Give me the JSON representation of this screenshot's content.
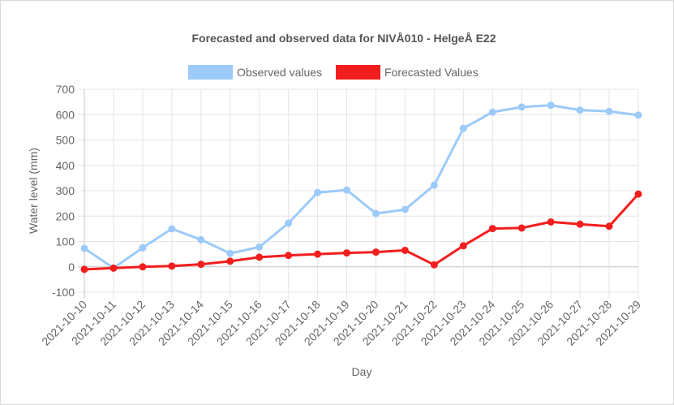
{
  "chart_data": {
    "type": "line",
    "title": "Forecasted and observed data for NIVÅ010 - HelgeÅ E22",
    "xlabel": "Day",
    "ylabel": "Water level (mm)",
    "ylim": [
      -100,
      700
    ],
    "yticks": [
      -100,
      0,
      100,
      200,
      300,
      400,
      500,
      600,
      700
    ],
    "grid": true,
    "legend_position": "top",
    "categories": [
      "2021-10-10",
      "2021-10-11",
      "2021-10-12",
      "2021-10-13",
      "2021-10-14",
      "2021-10-15",
      "2021-10-16",
      "2021-10-17",
      "2021-10-18",
      "2021-10-19",
      "2021-10-20",
      "2021-10-21",
      "2021-10-22",
      "2021-10-23",
      "2021-10-24",
      "2021-10-25",
      "2021-10-26",
      "2021-10-27",
      "2021-10-28",
      "2021-10-29"
    ],
    "series": [
      {
        "name": "Observed values",
        "color": "#9ccafa",
        "values": [
          73,
          -5,
          75,
          150,
          107,
          53,
          78,
          172,
          293,
          303,
          210,
          226,
          322,
          546,
          610,
          630,
          637,
          618,
          613,
          598
        ]
      },
      {
        "name": "Forecasted Values",
        "color": "#f21e1e",
        "values": [
          -10,
          -5,
          0,
          3,
          10,
          22,
          38,
          45,
          50,
          55,
          58,
          65,
          8,
          83,
          151,
          153,
          177,
          168,
          160,
          287
        ]
      }
    ]
  }
}
